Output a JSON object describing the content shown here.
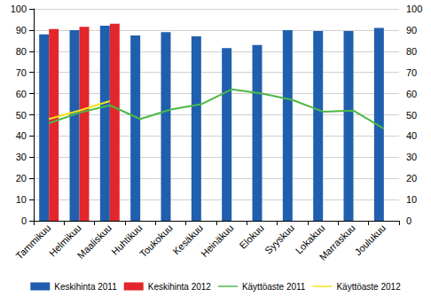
{
  "chart_data": {
    "type": "bar",
    "categories": [
      "Tammikuu",
      "Helmikuu",
      "Maaliskuu",
      "Huhtikuu",
      "Toukokuu",
      "Kesäkuu",
      "Heinäkuu",
      "Elokuu",
      "Syyskuu",
      "Lokakuu",
      "Marraskuu",
      "Joulukuu"
    ],
    "series": [
      {
        "name": "Keskihinta 2011",
        "type": "bar",
        "color": "#1f5fae",
        "values": [
          88,
          90,
          92,
          87.5,
          89,
          87,
          81.5,
          83,
          90,
          89.5,
          89.5,
          91
        ]
      },
      {
        "name": "Keskihinta 2012",
        "type": "bar",
        "color": "#e3262b",
        "values": [
          90.5,
          91.5,
          93,
          null,
          null,
          null,
          null,
          null,
          null,
          null,
          null,
          null
        ]
      },
      {
        "name": "Käyttöaste 2011",
        "type": "line",
        "axis": "y2",
        "color": "#4cb848",
        "values": [
          46,
          51,
          54.5,
          48,
          52.5,
          55,
          62,
          60,
          57,
          51.5,
          52,
          43.5
        ]
      },
      {
        "name": "Käyttöaste 2012",
        "type": "line",
        "axis": "y2",
        "color": "#f2e41b",
        "values": [
          48,
          52,
          56.5,
          null,
          null,
          null,
          null,
          null,
          null,
          null,
          null,
          null
        ]
      }
    ],
    "ylim": [
      0,
      100
    ],
    "yticks": [
      0,
      10,
      20,
      30,
      40,
      50,
      60,
      70,
      80,
      90,
      100
    ],
    "y2lim": [
      0,
      100
    ],
    "y2ticks": [
      0,
      10,
      20,
      30,
      40,
      50,
      60,
      70,
      80,
      90,
      100
    ],
    "grid": true,
    "legend": "bottom"
  }
}
